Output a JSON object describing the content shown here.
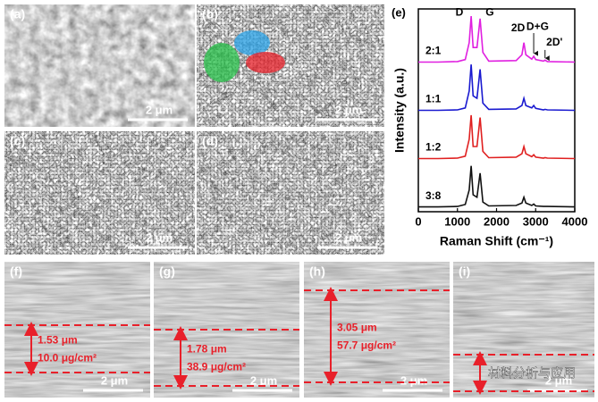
{
  "panels": [
    {
      "label": "(a)",
      "scale_bar": "2 μm"
    },
    {
      "label": "(b)",
      "scale_bar": "2 μm"
    },
    {
      "label": "(c)",
      "scale_bar": "2 μm"
    },
    {
      "label": "(d)",
      "scale_bar": "2 μm"
    },
    {
      "label": "(f)",
      "scale_bar": "2 μm",
      "thickness": "1.53 μm",
      "loading": "10.0 μg/cm²"
    },
    {
      "label": "(g)",
      "scale_bar": "2 μm",
      "thickness": "1.78 μm",
      "loading": "38.9 μg/cm²"
    },
    {
      "label": "(h)",
      "scale_bar": "2 μm",
      "thickness": "3.05 μm",
      "loading": "57.7 μg/cm²"
    },
    {
      "label": "(i)",
      "scale_bar": "2 μm"
    }
  ],
  "watermark": "材料分析与应用",
  "chart_data": {
    "type": "line",
    "title": "(e)",
    "x_label": "Raman Shift (cm⁻¹)",
    "y_label": "Intensity (a.u.)",
    "x": [
      0,
      500,
      1000,
      1200,
      1300,
      1350,
      1400,
      1500,
      1580,
      1650,
      1800,
      2500,
      2650,
      2700,
      2750,
      2900,
      2950,
      3000,
      3200,
      3240,
      3300,
      4000
    ],
    "series": [
      {
        "name": "2:1",
        "color": "#e020e0",
        "values": [
          3,
          3,
          3.01,
          3.05,
          3.4,
          3.95,
          3.3,
          3.3,
          3.9,
          3.2,
          3.02,
          3.03,
          3.15,
          3.4,
          3.15,
          3.06,
          3.12,
          3.05,
          3.02,
          3.04,
          3.01,
          3
        ]
      },
      {
        "name": "1:1",
        "color": "#1a1ad0",
        "values": [
          2,
          2,
          2.01,
          2.05,
          2.4,
          2.95,
          2.3,
          2.25,
          2.85,
          2.15,
          2.02,
          2.03,
          2.1,
          2.25,
          2.1,
          2.05,
          2.1,
          2.04,
          2.01,
          2.02,
          2.01,
          2
        ]
      },
      {
        "name": "1:2",
        "color": "#e02020",
        "values": [
          1,
          1,
          1.01,
          1.05,
          1.4,
          1.9,
          1.25,
          1.25,
          1.85,
          1.15,
          1.02,
          1.03,
          1.1,
          1.25,
          1.1,
          1.04,
          1.08,
          1.03,
          1.01,
          1.02,
          1.01,
          1
        ]
      },
      {
        "name": "3:8",
        "color": "#111111",
        "values": [
          0,
          0,
          0.01,
          0.05,
          0.35,
          0.85,
          0.25,
          0.2,
          0.7,
          0.1,
          0.02,
          0.03,
          0.08,
          0.2,
          0.08,
          0.03,
          0.06,
          0.02,
          0.01,
          0.01,
          0.01,
          0
        ]
      }
    ],
    "annotations": [
      "D",
      "G",
      "2D",
      "D+G",
      "2D'"
    ],
    "xlim": [
      0,
      4000
    ],
    "xticks": [
      0,
      1000,
      2000,
      3000,
      4000
    ],
    "ylim": [
      -0.1,
      4.1
    ]
  }
}
